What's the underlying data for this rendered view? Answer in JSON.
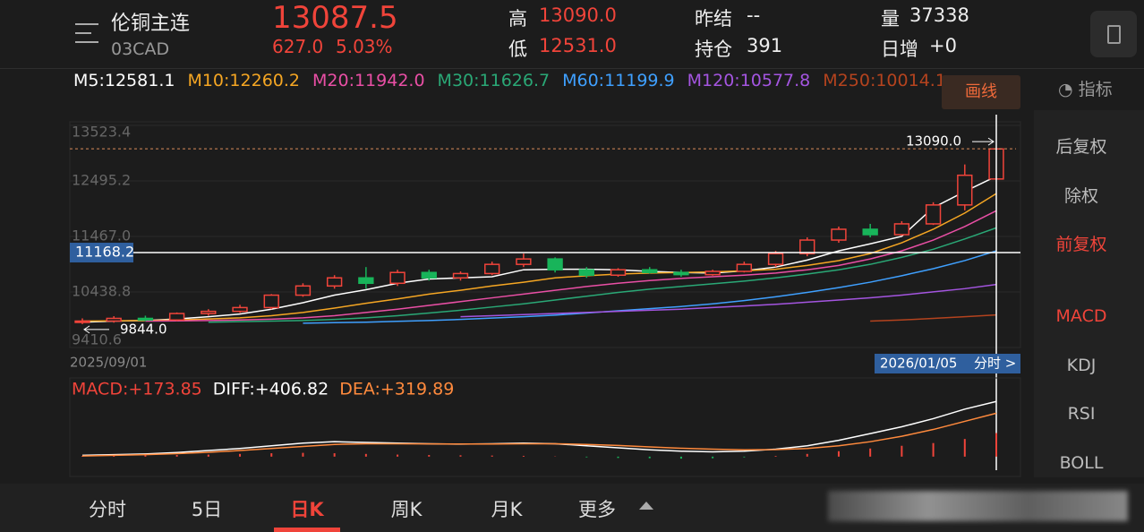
{
  "header": {
    "name": "伦铜主连",
    "code": "03CAD",
    "price": "13087.5",
    "change": "627.0",
    "change_pct": "5.03%",
    "high_label": "高",
    "high": "13090.0",
    "low_label": "低",
    "low": "12531.0",
    "prev_settle_label": "昨结",
    "prev_settle": "--",
    "open_interest_label": "持仓",
    "open_interest": "391",
    "volume_label": "量",
    "volume": "37338",
    "daily_increase_label": "日增",
    "daily_increase": "+0"
  },
  "side_panel": {
    "draw_button": "画线",
    "indicator_button": "指标",
    "items": [
      "后复权",
      "除权",
      "前复权",
      "MACD",
      "KDJ",
      "RSI",
      "BOLL"
    ]
  },
  "tabs": {
    "items": [
      "分时",
      "5日",
      "日K",
      "周K",
      "月K",
      "更多"
    ]
  },
  "chart_data": [
    {
      "type": "candlestick",
      "up_color": "#f0443a",
      "down_color": "#18b45a",
      "x": [
        "2025/09/01",
        null,
        null,
        null,
        null,
        null,
        null,
        null,
        null,
        null,
        null,
        null,
        null,
        null,
        null,
        null,
        null,
        null,
        null,
        null,
        null,
        null,
        null,
        null,
        null,
        null,
        null,
        null,
        null,
        "2026/01/05"
      ],
      "open": [
        9880,
        9900,
        9950,
        9920,
        10040,
        10080,
        10150,
        10380,
        10550,
        10700,
        10600,
        10800,
        10700,
        10780,
        10950,
        11050,
        10850,
        10750,
        10850,
        10800,
        10760,
        10820,
        10950,
        11150,
        11400,
        11600,
        11500,
        11700,
        12050,
        12531
      ],
      "high": [
        9950,
        9990,
        10000,
        10060,
        10120,
        10200,
        10400,
        10600,
        10750,
        10900,
        10850,
        10850,
        10820,
        11000,
        11150,
        11080,
        10900,
        10880,
        10900,
        10850,
        10850,
        11000,
        11200,
        11450,
        11650,
        11700,
        11750,
        12100,
        12800,
        13090
      ],
      "low": [
        9844,
        9870,
        9900,
        9900,
        10000,
        10050,
        10120,
        10350,
        10500,
        10500,
        10550,
        10650,
        10650,
        10750,
        10900,
        10800,
        10700,
        10720,
        10780,
        10720,
        10740,
        10800,
        10900,
        11100,
        11350,
        11450,
        11480,
        11680,
        11950,
        12531
      ],
      "close": [
        9900,
        9950,
        9920,
        10040,
        10080,
        10150,
        10380,
        10550,
        10700,
        10600,
        10800,
        10700,
        10780,
        10950,
        11050,
        10850,
        10750,
        10850,
        10800,
        10760,
        10820,
        10950,
        11150,
        11400,
        11600,
        11500,
        11700,
        12050,
        12600,
        13087.5
      ],
      "series": [
        {
          "name": "M5:12581.1",
          "color": "#ffffff",
          "values": [
            9880,
            9900,
            9910,
            9940,
            9980,
            10030,
            10120,
            10240,
            10380,
            10480,
            10600,
            10680,
            10700,
            10720,
            10850,
            10860,
            10860,
            10850,
            10820,
            10800,
            10790,
            10830,
            10900,
            11030,
            11200,
            11330,
            11470,
            12000,
            12300,
            12581.1
          ]
        },
        {
          "name": "M10:12260.2",
          "color": "#f5a623",
          "values": [
            9900,
            9905,
            9910,
            9920,
            9940,
            9960,
            10000,
            10060,
            10140,
            10230,
            10310,
            10400,
            10470,
            10550,
            10620,
            10700,
            10740,
            10770,
            10790,
            10800,
            10810,
            10830,
            10860,
            10930,
            11020,
            11150,
            11350,
            11600,
            11900,
            12260.2
          ]
        },
        {
          "name": "M20:11942.0",
          "color": "#e94fa5",
          "values": [
            null,
            null,
            9900,
            9905,
            9910,
            9920,
            9935,
            9960,
            10000,
            10060,
            10120,
            10190,
            10260,
            10330,
            10400,
            10470,
            10540,
            10600,
            10650,
            10690,
            10720,
            10750,
            10790,
            10850,
            10930,
            11050,
            11200,
            11400,
            11650,
            11942
          ]
        },
        {
          "name": "M30:11626.7",
          "color": "#2aa876",
          "values": [
            null,
            null,
            null,
            null,
            9880,
            9890,
            9900,
            9910,
            9930,
            9960,
            10000,
            10050,
            10100,
            10160,
            10220,
            10290,
            10360,
            10430,
            10490,
            10540,
            10590,
            10640,
            10700,
            10770,
            10850,
            10950,
            11080,
            11230,
            11420,
            11626.7
          ]
        },
        {
          "name": "M60:11199.9",
          "color": "#3fa0ff",
          "values": [
            null,
            null,
            null,
            null,
            null,
            null,
            null,
            9860,
            9870,
            9880,
            9895,
            9910,
            9930,
            9955,
            9980,
            10010,
            10050,
            10090,
            10130,
            10170,
            10220,
            10280,
            10350,
            10430,
            10520,
            10620,
            10740,
            10870,
            11020,
            11199.9
          ]
        },
        {
          "name": "M120:10577.8",
          "color": "#a455e0",
          "values": [
            null,
            null,
            null,
            null,
            null,
            null,
            null,
            null,
            null,
            null,
            null,
            null,
            9980,
            10000,
            10020,
            10040,
            10060,
            10080,
            10100,
            10120,
            10150,
            10180,
            10210,
            10250,
            10290,
            10330,
            10380,
            10440,
            10500,
            10577.8
          ]
        },
        {
          "name": "M250:10014.1",
          "color": "#b4431e",
          "values": [
            null,
            null,
            null,
            null,
            null,
            null,
            null,
            null,
            null,
            null,
            null,
            null,
            null,
            null,
            null,
            null,
            null,
            null,
            null,
            null,
            null,
            null,
            null,
            null,
            null,
            9900,
            9920,
            9950,
            9980,
            10014.1
          ]
        }
      ],
      "ylim": [
        9410.6,
        13523.4
      ],
      "yticks": [
        13523.4,
        12495.2,
        {
          "value": 11467,
          "label": "11467.0"
        },
        10438.8,
        9410.6
      ],
      "last_price_line": {
        "value": 13090,
        "label": "13090.0"
      },
      "low_marker": {
        "value": 9844,
        "label": "9844.0"
      },
      "crosshair": {
        "value": 11168.2,
        "x_label": "2026/01/05",
        "link": "分时 >"
      }
    },
    {
      "type": "macd",
      "ylim": [
        -100,
        560
      ],
      "series": [
        {
          "name": "MACD:+173.85",
          "color": "#f0443a",
          "values": [
            5,
            8,
            10,
            12,
            15,
            20,
            25,
            28,
            25,
            20,
            15,
            12,
            10,
            8,
            6,
            2,
            -5,
            -10,
            -12,
            -15,
            -12,
            -5,
            5,
            20,
            40,
            60,
            80,
            100,
            130,
            173.85
          ]
        },
        {
          "name": "DIFF:+406.82",
          "color": "#ffffff",
          "values": [
            10,
            15,
            20,
            30,
            45,
            60,
            80,
            100,
            110,
            105,
            100,
            95,
            92,
            95,
            100,
            95,
            80,
            65,
            50,
            40,
            35,
            40,
            55,
            80,
            120,
            170,
            220,
            280,
            350,
            406.82
          ]
        },
        {
          "name": "DEA:+319.89",
          "color": "#ff8a3d",
          "values": [
            5,
            10,
            15,
            22,
            32,
            45,
            60,
            75,
            90,
            95,
            95,
            94,
            93,
            93,
            95,
            95,
            90,
            82,
            72,
            62,
            55,
            50,
            52,
            60,
            80,
            110,
            150,
            200,
            260,
            319.89
          ]
        }
      ],
      "down_color": "#18b45a"
    }
  ]
}
